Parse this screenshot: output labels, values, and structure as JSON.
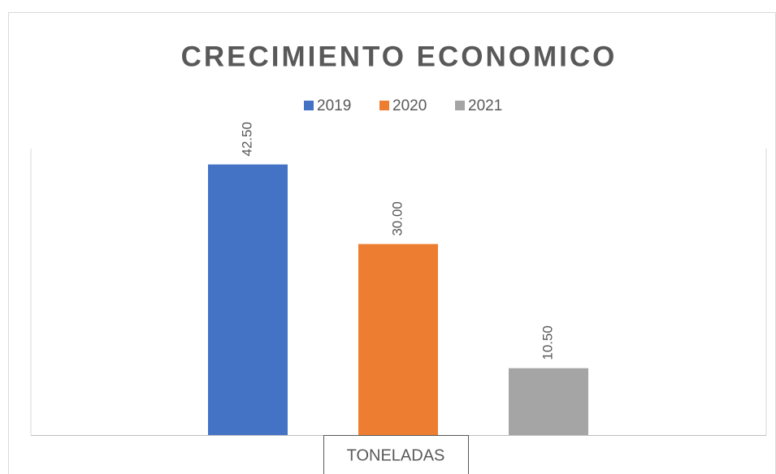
{
  "chart_data": {
    "type": "bar",
    "title": "CRECIMIENTO ECONOMICO",
    "categories": [
      "TONELADAS"
    ],
    "series": [
      {
        "name": "2019",
        "color": "#4472c4",
        "values": [
          42.5
        ],
        "value_labels": [
          "42.50"
        ]
      },
      {
        "name": "2020",
        "color": "#ed7d31",
        "values": [
          30
        ],
        "value_labels": [
          "30.00"
        ]
      },
      {
        "name": "2021",
        "color": "#a5a5a5",
        "values": [
          10.5
        ],
        "value_labels": [
          "10.50"
        ]
      }
    ],
    "ylim": [
      0,
      45
    ]
  }
}
